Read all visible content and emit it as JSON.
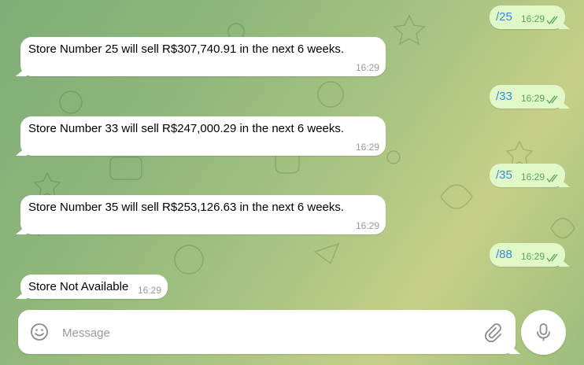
{
  "messages": [
    {
      "id": "m1",
      "direction": "out",
      "text": "/25",
      "time": "16:29"
    },
    {
      "id": "m2",
      "direction": "in",
      "text": "Store Number 25 will sell R$307,740.91 in the next 6 weeks.",
      "time": "16:29"
    },
    {
      "id": "m3",
      "direction": "out",
      "text": "/33",
      "time": "16:29"
    },
    {
      "id": "m4",
      "direction": "in",
      "text": "Store Number 33 will sell R$247,000.29 in the next 6 weeks.",
      "time": "16:29"
    },
    {
      "id": "m5",
      "direction": "out",
      "text": "/35",
      "time": "16:29"
    },
    {
      "id": "m6",
      "direction": "in",
      "text": "Store Number 35 will sell R$253,126.63 in the next 6 weeks.",
      "time": "16:29"
    },
    {
      "id": "m7",
      "direction": "out",
      "text": "/88",
      "time": "16:29"
    },
    {
      "id": "m8",
      "direction": "in",
      "text": "Store Not Available",
      "time": "16:29"
    }
  ],
  "composer": {
    "placeholder": "Message",
    "value": ""
  },
  "icons": {
    "emoji": "smile-icon",
    "attach": "paperclip-icon",
    "mic": "microphone-icon",
    "read_receipt": "double-check-icon"
  },
  "colors": {
    "outgoing_bubble": "#e0f8c8",
    "outgoing_text": "#3a8ad6",
    "outgoing_time": "#5aa65a",
    "incoming_bubble": "#ffffff",
    "time_gray": "#9a9a9a"
  }
}
